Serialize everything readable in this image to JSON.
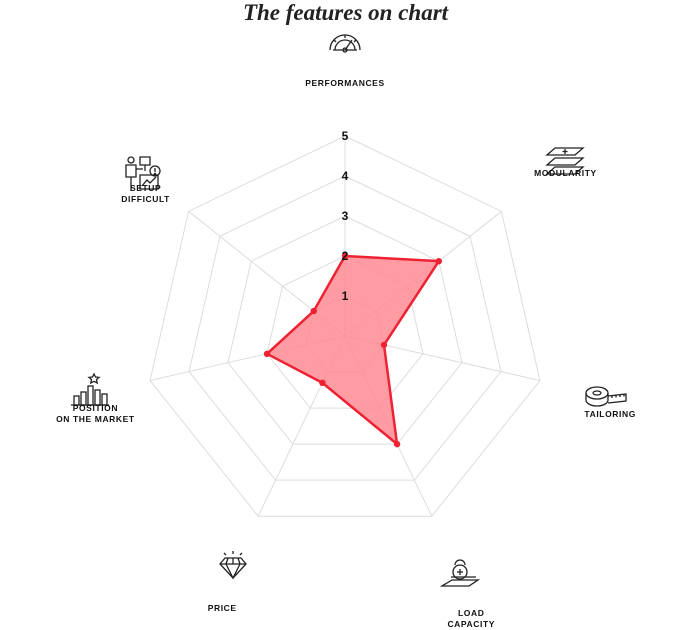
{
  "chart_data": {
    "type": "radar",
    "title": "The features on chart",
    "axes": [
      {
        "label": "PERFORMANCES",
        "icon": "gauge-icon",
        "value": 2
      },
      {
        "label": "MODULARITY",
        "icon": "layers-icon",
        "value": 3
      },
      {
        "label": "TAILORING",
        "icon": "tape-measure-icon",
        "value": 1
      },
      {
        "label": "LOAD\nCAPACITY",
        "icon": "kettlebell-icon",
        "value": 3
      },
      {
        "label": "PRICE",
        "icon": "diamond-icon",
        "value": 1.3
      },
      {
        "label": "POSITION\nON THE MARKET",
        "icon": "ranking-bars-icon",
        "value": 2
      },
      {
        "label": "SETUP\nDIFFICULT",
        "icon": "setup-tools-icon",
        "value": 1
      }
    ],
    "rlim": [
      0,
      5
    ],
    "ticks": [
      "1",
      "2",
      "3",
      "4",
      "5"
    ],
    "grid": true,
    "fill_color": "#ff8a92",
    "line_color": "#ee2233",
    "grid_color": "#dddddd"
  }
}
